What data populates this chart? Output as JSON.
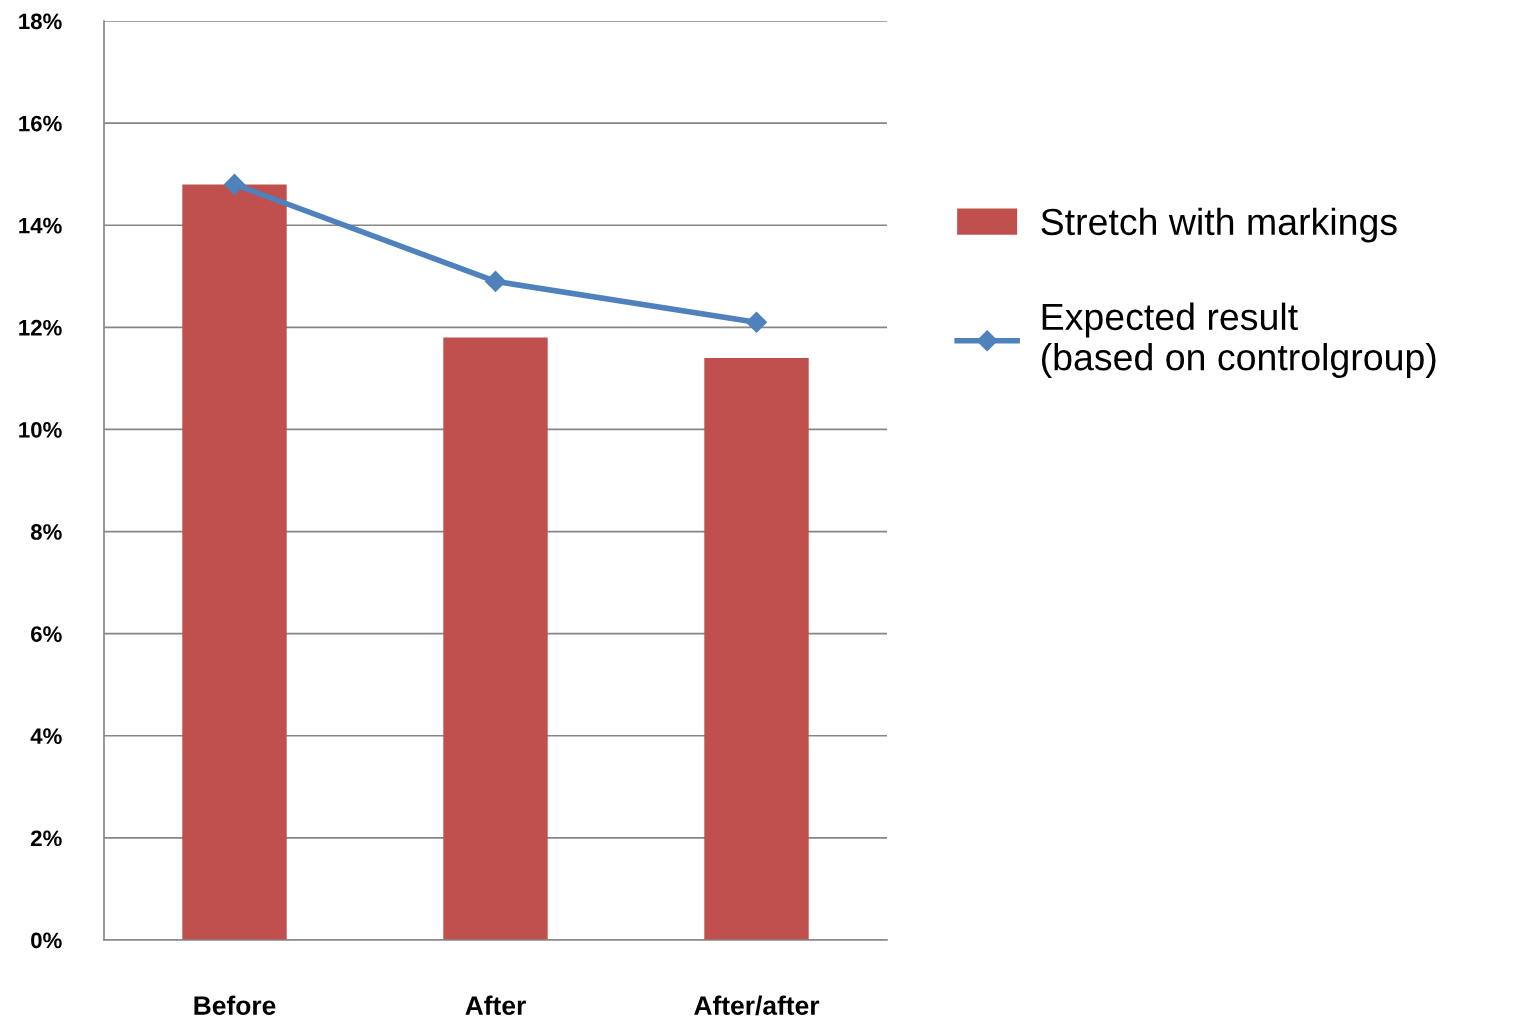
{
  "chart_data": {
    "type": "bar",
    "categories": [
      "Before",
      "After",
      "After/after"
    ],
    "series": [
      {
        "name": "Stretch with markings",
        "color": "#c0504d",
        "values": [
          14.8,
          11.8,
          11.4
        ]
      },
      {
        "name": "Expected result\n(based on controlgroup)",
        "type": "line",
        "color": "#4f81bd",
        "marker": "diamond",
        "values": [
          14.8,
          12.9,
          12.1
        ]
      }
    ],
    "ylim": [
      0,
      18
    ],
    "yticks": [
      {
        "value": 0,
        "label": "0%"
      },
      {
        "value": 2,
        "label": "2%"
      },
      {
        "value": 4,
        "label": "4%"
      },
      {
        "value": 6,
        "label": "6%"
      },
      {
        "value": 8,
        "label": "8%"
      },
      {
        "value": 10,
        "label": "10%"
      },
      {
        "value": 12,
        "label": "12%"
      },
      {
        "value": 14,
        "label": "14%"
      },
      {
        "value": 16,
        "label": "16%"
      },
      {
        "value": 18,
        "label": "18%"
      }
    ],
    "grid": "y",
    "legend": "right"
  }
}
